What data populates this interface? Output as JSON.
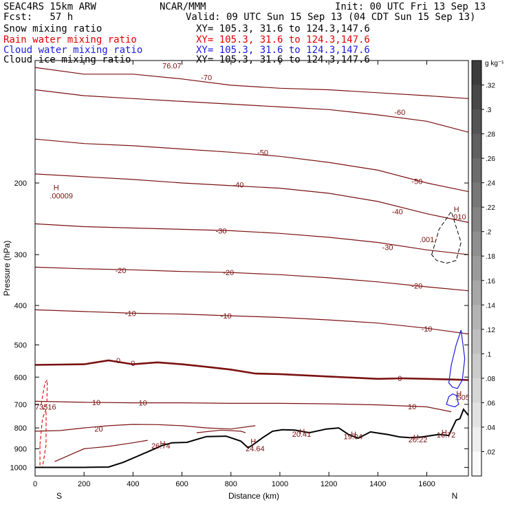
{
  "header": {
    "model": "SEAC4RS 15km ARW",
    "org": "NCAR/MMM",
    "init": "Init: 00 UTC Fri 13 Sep 13",
    "fcst": "Fcst:   57 h",
    "valid": "Valid: 09 UTC Sun 15 Sep 13 (04 CDT Sun 15 Sep 13)",
    "fields": [
      {
        "name": "Snow mixing ratio",
        "xy": "XY= 105.3, 31.6 to 124.3,147.6",
        "color": "#000000"
      },
      {
        "name": "Rain water mixing ratio",
        "xy": "XY= 105.3, 31.6 to 124.3,147.6",
        "color": "#e00000"
      },
      {
        "name": "Cloud water mixing ratio",
        "xy": "XY= 105.3, 31.6 to 124.3,147.6",
        "color": "#1a1adf"
      },
      {
        "name": "Cloud ice mixing ratio",
        "xy": "XY= 105.3, 31.6 to 124.3,147.6",
        "color": "#000000"
      }
    ]
  },
  "chart_data": {
    "type": "line",
    "xlabel": "Distance (km)",
    "ylabel": "Pressure (hPa)",
    "xlim": [
      0,
      1770
    ],
    "ylim": [
      1050,
      100
    ],
    "y_scale": "log",
    "xticks": [
      0,
      200,
      400,
      600,
      800,
      1000,
      1200,
      1400,
      1600
    ],
    "yticks": [
      200,
      300,
      400,
      500,
      600,
      700,
      800,
      900,
      1000
    ],
    "endpoints": {
      "left": "S",
      "right": "N"
    },
    "colorbar": {
      "units": "g kg⁻¹",
      "ticks": [
        ".32",
        ".3",
        ".28",
        ".26",
        ".24",
        ".22",
        ".2",
        ".18",
        ".16",
        ".14",
        ".12",
        ".1",
        ".08",
        ".06",
        ".04",
        ".02"
      ]
    },
    "temperature_contours": [
      {
        "label": "-70",
        "x": [
          0,
          200,
          400,
          600,
          800,
          1000,
          1200,
          1400,
          1600,
          1770
        ],
        "y": [
          104,
          108,
          108,
          111,
          115,
          117,
          118,
          120,
          122,
          124
        ]
      },
      {
        "label": "-60",
        "x": [
          0,
          200,
          400,
          600,
          800,
          1000,
          1200,
          1400,
          1600,
          1770
        ],
        "y": [
          118,
          122,
          124,
          126,
          128,
          130,
          132,
          136,
          141,
          150
        ]
      },
      {
        "label": "-50",
        "x": [
          0,
          200,
          400,
          600,
          800,
          1000,
          1200,
          1400,
          1600,
          1770
        ],
        "y": [
          156,
          160,
          162,
          165,
          168,
          172,
          178,
          186,
          200,
          210
        ]
      },
      {
        "label": "-40",
        "x": [
          0,
          200,
          400,
          600,
          800,
          1000,
          1200,
          1400,
          1600,
          1770
        ],
        "y": [
          190,
          193,
          196,
          200,
          203,
          206,
          212,
          222,
          238,
          250
        ]
      },
      {
        "label": "-30",
        "x": [
          0,
          200,
          400,
          600,
          800,
          1000,
          1200,
          1400,
          1600,
          1770
        ],
        "y": [
          252,
          256,
          258,
          260,
          262,
          266,
          272,
          280,
          292,
          300
        ]
      },
      {
        "label": "-20",
        "x": [
          0,
          200,
          400,
          600,
          800,
          1000,
          1200,
          1400,
          1600,
          1770
        ],
        "y": [
          322,
          325,
          327,
          330,
          332,
          336,
          342,
          350,
          360,
          368
        ]
      },
      {
        "label": "-10",
        "x": [
          0,
          200,
          400,
          600,
          800,
          1000,
          1200,
          1400,
          1600,
          1770
        ],
        "y": [
          410,
          414,
          418,
          420,
          424,
          428,
          434,
          442,
          455,
          470
        ]
      },
      {
        "label": "0",
        "x": [
          0,
          200,
          300,
          400,
          500,
          600,
          700,
          800,
          900,
          1000,
          1100,
          1200,
          1300,
          1400,
          1500,
          1600,
          1700,
          1770
        ],
        "y": [
          560,
          558,
          546,
          558,
          552,
          558,
          566,
          575,
          588,
          590,
          594,
          598,
          602,
          606,
          604,
          606,
          608,
          610
        ]
      },
      {
        "label": "10",
        "x": [
          0,
          200,
          400,
          600,
          800,
          1000,
          1200,
          1400,
          1600,
          1700
        ],
        "y": [
          688,
          692,
          694,
          694,
          696,
          696,
          698,
          702,
          710,
          730
        ]
      },
      {
        "label": "20",
        "x": [
          0,
          100,
          200,
          300,
          400,
          500,
          600,
          700,
          800,
          900
        ],
        "y": [
          815,
          812,
          800,
          790,
          784,
          785,
          790,
          800,
          805,
          790
        ]
      },
      {
        "label": "",
        "x": [
          80,
          200,
          300,
          400,
          460
        ],
        "y": [
          968,
          900,
          888,
          870,
          858
        ]
      },
      {
        "label": "",
        "x": [
          660,
          760,
          840,
          860
        ],
        "y": [
          822,
          810,
          815,
          822
        ]
      }
    ],
    "terrain": {
      "x": [
        0,
        100,
        200,
        300,
        360,
        420,
        480,
        520,
        560,
        620,
        700,
        780,
        840,
        870,
        890,
        930,
        970,
        1010,
        1060,
        1120,
        1190,
        1240,
        1280,
        1320,
        1370,
        1410,
        1440,
        1490,
        1530,
        1580,
        1620,
        1650,
        1690,
        1720,
        1735,
        1750,
        1770
      ],
      "y": [
        1000,
        1000,
        1000,
        998,
        972,
        938,
        905,
        883,
        870,
        868,
        840,
        838,
        862,
        895,
        880,
        845,
        815,
        808,
        810,
        822,
        805,
        800,
        830,
        848,
        818,
        825,
        830,
        842,
        845,
        842,
        835,
        830,
        835,
        765,
        760,
        720,
        745
      ]
    },
    "rain_water_contours": [
      {
        "x": [
          20,
          30,
          45,
          45,
          30,
          20
        ],
        "y": [
          880,
          760,
          720,
          880,
          1000,
          1000
        ]
      },
      {
        "x": [
          25,
          40,
          50,
          48,
          35,
          25
        ],
        "y": [
          700,
          620,
          610,
          700,
          720,
          700
        ]
      }
    ],
    "cloud_water_contours": [
      {
        "x": [
          1690,
          1700,
          1720,
          1740,
          1755,
          1745,
          1725,
          1705,
          1690
        ],
        "y": [
          620,
          560,
          500,
          460,
          540,
          610,
          640,
          635,
          620
        ]
      },
      {
        "x": [
          1680,
          1690,
          1705,
          1720,
          1730,
          1715,
          1695,
          1680
        ],
        "y": [
          700,
          670,
          660,
          665,
          700,
          710,
          705,
          700
        ]
      }
    ],
    "cloud_ice_contours": [
      {
        "x": [
          1620,
          1650,
          1700,
          1740,
          1720,
          1680,
          1640,
          1620
        ],
        "y": [
          300,
          260,
          235,
          280,
          310,
          315,
          310,
          300
        ]
      }
    ],
    "annotations": [
      {
        "text": "H",
        "x": 75,
        "y": 205
      },
      {
        "text": ".00009",
        "x": 60,
        "y": 215
      },
      {
        "text": "H",
        "x": 1710,
        "y": 232
      },
      {
        "text": ".010",
        "x": 1700,
        "y": 242
      },
      {
        "text": ".001",
        "x": 1570,
        "y": 275
      },
      {
        "text": "H",
        "x": 1720,
        "y": 658
      },
      {
        "text": ".505",
        "x": 1715,
        "y": 673
      },
      {
        "text": "73516",
        "x": 0,
        "y": 710
      },
      {
        "text": "H",
        "x": 510,
        "y": 872
      },
      {
        "text": "26.74",
        "x": 475,
        "y": 885
      },
      {
        "text": "H",
        "x": 880,
        "y": 862
      },
      {
        "text": "24.64",
        "x": 860,
        "y": 898
      },
      {
        "text": "H",
        "x": 1080,
        "y": 816
      },
      {
        "text": "20.41",
        "x": 1050,
        "y": 828
      },
      {
        "text": "H",
        "x": 1290,
        "y": 828
      },
      {
        "text": "19.04",
        "x": 1260,
        "y": 840
      },
      {
        "text": "H",
        "x": 1545,
        "y": 842
      },
      {
        "text": "20.22",
        "x": 1525,
        "y": 854
      },
      {
        "text": "H",
        "x": 1660,
        "y": 820
      },
      {
        "text": "16.72",
        "x": 1640,
        "y": 832
      },
      {
        "text": "76.07",
        "x": 520,
        "y": 103
      }
    ],
    "contour_labels": [
      {
        "text": "-70",
        "x": 700,
        "y": 110
      },
      {
        "text": "-60",
        "x": 1490,
        "y": 134
      },
      {
        "text": "-50",
        "x": 930,
        "y": 168
      },
      {
        "text": "-50",
        "x": 1560,
        "y": 198
      },
      {
        "text": "-40",
        "x": 830,
        "y": 202
      },
      {
        "text": "-40",
        "x": 1480,
        "y": 235
      },
      {
        "text": "-30",
        "x": 760,
        "y": 262
      },
      {
        "text": "-30",
        "x": 1440,
        "y": 288
      },
      {
        "text": "-20",
        "x": 350,
        "y": 328
      },
      {
        "text": "-20",
        "x": 790,
        "y": 332
      },
      {
        "text": "-20",
        "x": 1560,
        "y": 358
      },
      {
        "text": "-10",
        "x": 390,
        "y": 418
      },
      {
        "text": "-10",
        "x": 780,
        "y": 424
      },
      {
        "text": "-10",
        "x": 1600,
        "y": 456
      },
      {
        "text": "0",
        "x": 340,
        "y": 546
      },
      {
        "text": "0",
        "x": 400,
        "y": 555
      },
      {
        "text": "0",
        "x": 1490,
        "y": 604
      },
      {
        "text": "10",
        "x": 250,
        "y": 692
      },
      {
        "text": "10",
        "x": 440,
        "y": 694
      },
      {
        "text": "10",
        "x": 1540,
        "y": 708
      },
      {
        "text": "20",
        "x": 260,
        "y": 805
      }
    ]
  }
}
